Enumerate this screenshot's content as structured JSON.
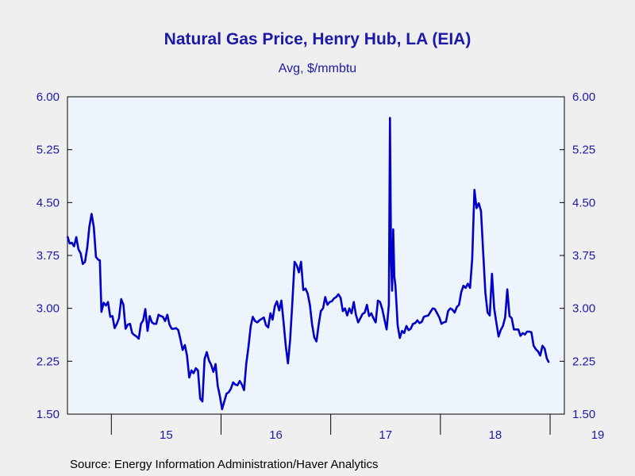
{
  "chart_data": {
    "type": "line",
    "title": "Natural Gas Price, Henry Hub, LA (EIA)",
    "subtitle": "Avg, $/mmbtu",
    "source": "Source:  Energy Information Administration/Haver Analytics",
    "ylim": [
      1.5,
      6.0
    ],
    "xlim": [
      2014.6,
      2019.13
    ],
    "y_ticks": [
      "1.50",
      "2.25",
      "3.00",
      "3.75",
      "4.50",
      "5.25",
      "6.00"
    ],
    "x_tick_labels": [
      "15",
      "16",
      "17",
      "18",
      "19"
    ],
    "grid": false,
    "colors": {
      "series": "#0000c8",
      "title": "#1a1aa6",
      "plot_bg": "#eef4fc"
    },
    "series": [
      {
        "points": [
          [
            2014.6,
            4.02
          ],
          [
            2014.62,
            3.92
          ],
          [
            2014.64,
            3.93
          ],
          [
            2014.66,
            3.88
          ],
          [
            2014.68,
            4.01
          ],
          [
            2014.7,
            3.84
          ],
          [
            2014.72,
            3.78
          ],
          [
            2014.74,
            3.63
          ],
          [
            2014.76,
            3.66
          ],
          [
            2014.78,
            3.86
          ],
          [
            2014.8,
            4.16
          ],
          [
            2014.82,
            4.34
          ],
          [
            2014.84,
            4.15
          ],
          [
            2014.86,
            3.73
          ],
          [
            2014.88,
            3.69
          ],
          [
            2014.895,
            3.68
          ],
          [
            2014.91,
            2.95
          ],
          [
            2014.93,
            3.08
          ],
          [
            2014.95,
            3.04
          ],
          [
            2014.97,
            3.09
          ],
          [
            2014.99,
            2.88
          ],
          [
            2015.01,
            2.89
          ],
          [
            2015.03,
            2.72
          ],
          [
            2015.05,
            2.78
          ],
          [
            2015.07,
            2.86
          ],
          [
            2015.09,
            3.13
          ],
          [
            2015.11,
            3.05
          ],
          [
            2015.13,
            2.71
          ],
          [
            2015.15,
            2.77
          ],
          [
            2015.17,
            2.78
          ],
          [
            2015.19,
            2.65
          ],
          [
            2015.21,
            2.62
          ],
          [
            2015.23,
            2.6
          ],
          [
            2015.25,
            2.57
          ],
          [
            2015.27,
            2.78
          ],
          [
            2015.29,
            2.83
          ],
          [
            2015.31,
            2.99
          ],
          [
            2015.33,
            2.68
          ],
          [
            2015.35,
            2.89
          ],
          [
            2015.37,
            2.8
          ],
          [
            2015.39,
            2.78
          ],
          [
            2015.41,
            2.78
          ],
          [
            2015.43,
            2.91
          ],
          [
            2015.45,
            2.89
          ],
          [
            2015.47,
            2.88
          ],
          [
            2015.49,
            2.82
          ],
          [
            2015.51,
            2.91
          ],
          [
            2015.53,
            2.77
          ],
          [
            2015.55,
            2.71
          ],
          [
            2015.57,
            2.71
          ],
          [
            2015.59,
            2.72
          ],
          [
            2015.61,
            2.69
          ],
          [
            2015.63,
            2.56
          ],
          [
            2015.65,
            2.41
          ],
          [
            2015.67,
            2.48
          ],
          [
            2015.69,
            2.33
          ],
          [
            2015.71,
            2.02
          ],
          [
            2015.73,
            2.12
          ],
          [
            2015.75,
            2.08
          ],
          [
            2015.77,
            2.15
          ],
          [
            2015.79,
            2.12
          ],
          [
            2015.81,
            1.72
          ],
          [
            2015.83,
            1.68
          ],
          [
            2015.85,
            2.28
          ],
          [
            2015.87,
            2.38
          ],
          [
            2015.89,
            2.26
          ],
          [
            2015.91,
            2.2
          ],
          [
            2015.93,
            2.1
          ],
          [
            2015.95,
            2.21
          ],
          [
            2015.97,
            1.9
          ],
          [
            2015.99,
            1.75
          ],
          [
            2016.01,
            1.57
          ],
          [
            2016.03,
            1.68
          ],
          [
            2016.05,
            1.79
          ],
          [
            2016.07,
            1.81
          ],
          [
            2016.09,
            1.86
          ],
          [
            2016.11,
            1.95
          ],
          [
            2016.13,
            1.92
          ],
          [
            2016.15,
            1.91
          ],
          [
            2016.17,
            1.97
          ],
          [
            2016.19,
            1.92
          ],
          [
            2016.21,
            1.84
          ],
          [
            2016.23,
            2.21
          ],
          [
            2016.25,
            2.45
          ],
          [
            2016.27,
            2.74
          ],
          [
            2016.29,
            2.88
          ],
          [
            2016.31,
            2.82
          ],
          [
            2016.33,
            2.8
          ],
          [
            2016.35,
            2.83
          ],
          [
            2016.37,
            2.85
          ],
          [
            2016.39,
            2.87
          ],
          [
            2016.41,
            2.76
          ],
          [
            2016.43,
            2.73
          ],
          [
            2016.45,
            2.93
          ],
          [
            2016.47,
            2.84
          ],
          [
            2016.49,
            3.03
          ],
          [
            2016.51,
            3.1
          ],
          [
            2016.53,
            2.97
          ],
          [
            2016.55,
            3.11
          ],
          [
            2016.57,
            2.81
          ],
          [
            2016.59,
            2.47
          ],
          [
            2016.61,
            2.22
          ],
          [
            2016.63,
            2.55
          ],
          [
            2016.65,
            3.08
          ],
          [
            2016.67,
            3.66
          ],
          [
            2016.69,
            3.61
          ],
          [
            2016.71,
            3.51
          ],
          [
            2016.73,
            3.66
          ],
          [
            2016.75,
            3.26
          ],
          [
            2016.77,
            3.28
          ],
          [
            2016.79,
            3.21
          ],
          [
            2016.81,
            3.05
          ],
          [
            2016.83,
            2.77
          ],
          [
            2016.85,
            2.59
          ],
          [
            2016.87,
            2.53
          ],
          [
            2016.89,
            2.77
          ],
          [
            2016.91,
            2.96
          ],
          [
            2016.93,
            3.0
          ],
          [
            2016.95,
            3.16
          ],
          [
            2016.97,
            3.05
          ],
          [
            2016.99,
            3.09
          ],
          [
            2017.01,
            3.1
          ],
          [
            2017.03,
            3.14
          ],
          [
            2017.05,
            3.16
          ],
          [
            2017.07,
            3.2
          ],
          [
            2017.09,
            3.15
          ],
          [
            2017.11,
            2.96
          ],
          [
            2017.13,
            3.0
          ],
          [
            2017.15,
            2.9
          ],
          [
            2017.17,
            3.0
          ],
          [
            2017.19,
            2.93
          ],
          [
            2017.21,
            3.09
          ],
          [
            2017.23,
            2.91
          ],
          [
            2017.25,
            2.8
          ],
          [
            2017.27,
            2.86
          ],
          [
            2017.29,
            2.92
          ],
          [
            2017.31,
            2.94
          ],
          [
            2017.33,
            3.05
          ],
          [
            2017.35,
            2.89
          ],
          [
            2017.37,
            2.93
          ],
          [
            2017.39,
            2.86
          ],
          [
            2017.41,
            2.8
          ],
          [
            2017.43,
            3.11
          ],
          [
            2017.45,
            3.09
          ],
          [
            2017.47,
            2.99
          ],
          [
            2017.49,
            2.84
          ],
          [
            2017.51,
            2.7
          ],
          [
            2017.53,
            3.05
          ],
          [
            2017.54,
            5.7
          ],
          [
            2017.55,
            3.7
          ],
          [
            2017.56,
            3.25
          ],
          [
            2017.57,
            4.12
          ],
          [
            2017.58,
            3.45
          ],
          [
            2017.59,
            3.32
          ],
          [
            2017.61,
            2.76
          ],
          [
            2017.63,
            2.58
          ],
          [
            2017.65,
            2.68
          ],
          [
            2017.67,
            2.65
          ],
          [
            2017.69,
            2.75
          ],
          [
            2017.71,
            2.69
          ],
          [
            2017.73,
            2.71
          ],
          [
            2017.75,
            2.78
          ],
          [
            2017.77,
            2.79
          ],
          [
            2017.79,
            2.83
          ],
          [
            2017.81,
            2.79
          ],
          [
            2017.83,
            2.81
          ],
          [
            2017.85,
            2.88
          ],
          [
            2017.87,
            2.89
          ],
          [
            2017.89,
            2.9
          ],
          [
            2017.91,
            2.95
          ],
          [
            2017.93,
            3.0
          ],
          [
            2017.95,
            2.99
          ],
          [
            2017.97,
            2.93
          ],
          [
            2017.99,
            2.87
          ],
          [
            2018.01,
            2.78
          ],
          [
            2018.03,
            2.8
          ],
          [
            2018.05,
            2.81
          ],
          [
            2018.07,
            2.96
          ],
          [
            2018.09,
            3.0
          ],
          [
            2018.11,
            2.98
          ],
          [
            2018.13,
            2.94
          ],
          [
            2018.15,
            3.02
          ],
          [
            2018.17,
            3.05
          ],
          [
            2018.19,
            3.23
          ],
          [
            2018.21,
            3.32
          ],
          [
            2018.23,
            3.29
          ],
          [
            2018.25,
            3.35
          ],
          [
            2018.27,
            3.29
          ],
          [
            2018.29,
            3.7
          ],
          [
            2018.31,
            4.68
          ],
          [
            2018.33,
            4.42
          ],
          [
            2018.35,
            4.49
          ],
          [
            2018.37,
            4.38
          ],
          [
            2018.39,
            3.8
          ],
          [
            2018.41,
            3.22
          ],
          [
            2018.43,
            2.94
          ],
          [
            2018.45,
            2.9
          ],
          [
            2018.47,
            3.49
          ],
          [
            2018.49,
            3.0
          ],
          [
            2018.51,
            2.8
          ],
          [
            2018.53,
            2.6
          ],
          [
            2018.55,
            2.69
          ],
          [
            2018.57,
            2.75
          ],
          [
            2018.59,
            2.87
          ],
          [
            2018.61,
            3.27
          ],
          [
            2018.63,
            2.89
          ],
          [
            2018.65,
            2.86
          ],
          [
            2018.67,
            2.7
          ],
          [
            2018.69,
            2.7
          ],
          [
            2018.71,
            2.7
          ],
          [
            2018.73,
            2.61
          ],
          [
            2018.75,
            2.65
          ],
          [
            2018.77,
            2.63
          ],
          [
            2018.79,
            2.67
          ],
          [
            2018.81,
            2.67
          ],
          [
            2018.83,
            2.66
          ],
          [
            2018.85,
            2.47
          ],
          [
            2018.87,
            2.42
          ],
          [
            2018.89,
            2.39
          ],
          [
            2018.91,
            2.33
          ],
          [
            2018.93,
            2.47
          ],
          [
            2018.95,
            2.43
          ],
          [
            2018.97,
            2.29
          ],
          [
            2018.99,
            2.23
          ]
        ]
      }
    ]
  }
}
